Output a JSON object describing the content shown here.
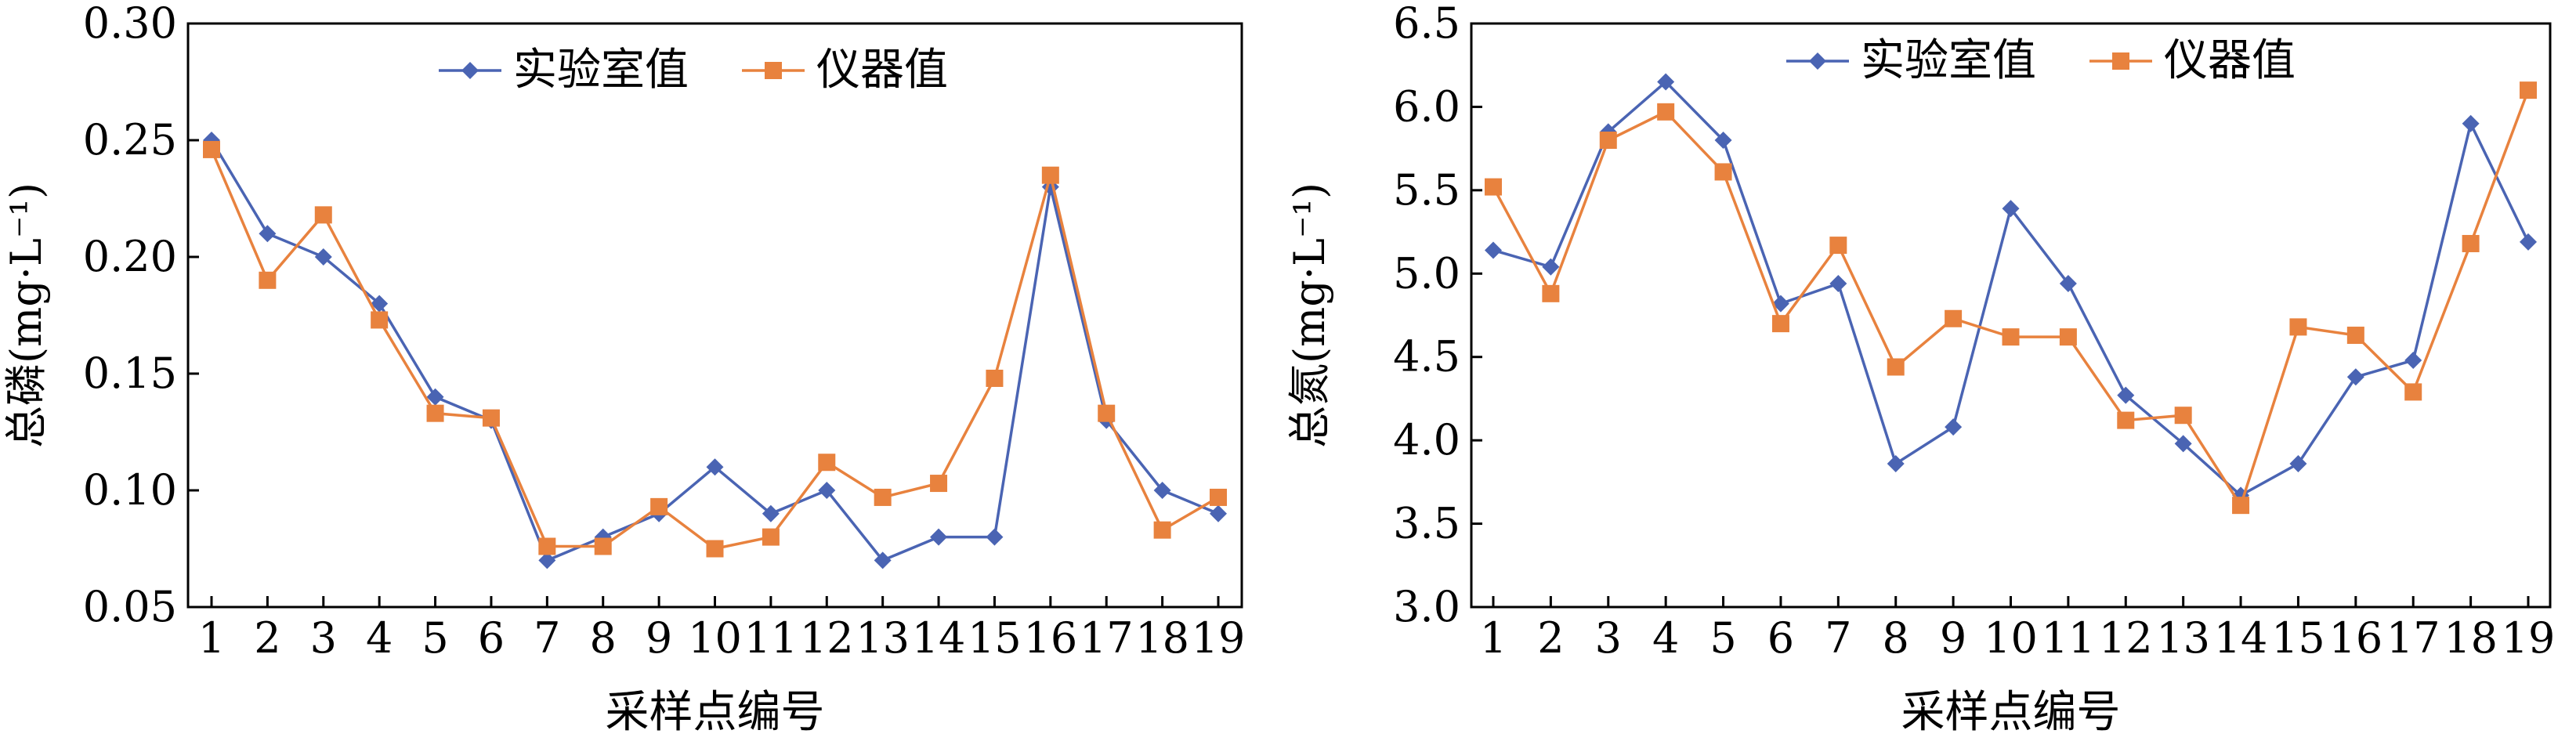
{
  "colors": {
    "lab": "#4a64b3",
    "instrument": "#e8823e"
  },
  "chart_data": [
    {
      "type": "line",
      "title": "",
      "xlabel": "采样点编号",
      "ylabel": "总磷(mg·L⁻¹)",
      "categories": [
        "1",
        "2",
        "3",
        "4",
        "5",
        "6",
        "7",
        "8",
        "9",
        "10",
        "11",
        "12",
        "13",
        "14",
        "15",
        "16",
        "17",
        "18",
        "19"
      ],
      "ylim": [
        0.05,
        0.3
      ],
      "yticks": [
        "0.05",
        "0.10",
        "0.15",
        "0.20",
        "0.25",
        "0.30"
      ],
      "legend_position": "top-center",
      "series": [
        {
          "name": "实验室值",
          "marker": "diamond",
          "values": [
            0.25,
            0.21,
            0.2,
            0.18,
            0.14,
            0.13,
            0.07,
            0.08,
            0.09,
            0.11,
            0.09,
            0.1,
            0.07,
            0.08,
            0.08,
            0.23,
            0.13,
            0.1,
            0.09
          ]
        },
        {
          "name": "仪器值",
          "marker": "square",
          "values": [
            0.246,
            0.19,
            0.218,
            0.173,
            0.133,
            0.131,
            0.076,
            0.076,
            0.093,
            0.075,
            0.08,
            0.112,
            0.097,
            0.103,
            0.148,
            0.235,
            0.133,
            0.083,
            0.097
          ]
        }
      ]
    },
    {
      "type": "line",
      "title": "",
      "xlabel": "采样点编号",
      "ylabel": "总氮(mg·L⁻¹)",
      "categories": [
        "1",
        "2",
        "3",
        "4",
        "5",
        "6",
        "7",
        "8",
        "9",
        "10",
        "11",
        "12",
        "13",
        "14",
        "15",
        "16",
        "17",
        "18",
        "19"
      ],
      "ylim": [
        3.0,
        6.5
      ],
      "yticks": [
        "3.0",
        "3.5",
        "4.0",
        "4.5",
        "5.0",
        "5.5",
        "6.0",
        "6.5"
      ],
      "legend_position": "top-center",
      "series": [
        {
          "name": "实验室值",
          "marker": "diamond",
          "values": [
            5.14,
            5.04,
            5.85,
            6.15,
            5.8,
            4.82,
            4.94,
            3.86,
            4.08,
            5.39,
            4.94,
            4.27,
            3.98,
            3.67,
            3.86,
            4.38,
            4.48,
            5.9,
            5.19
          ]
        },
        {
          "name": "仪器值",
          "marker": "square",
          "values": [
            5.52,
            4.88,
            5.8,
            5.97,
            5.61,
            4.7,
            5.17,
            4.44,
            4.73,
            4.62,
            4.62,
            4.12,
            4.15,
            3.61,
            4.68,
            4.63,
            4.29,
            5.18,
            6.1
          ]
        }
      ]
    }
  ]
}
